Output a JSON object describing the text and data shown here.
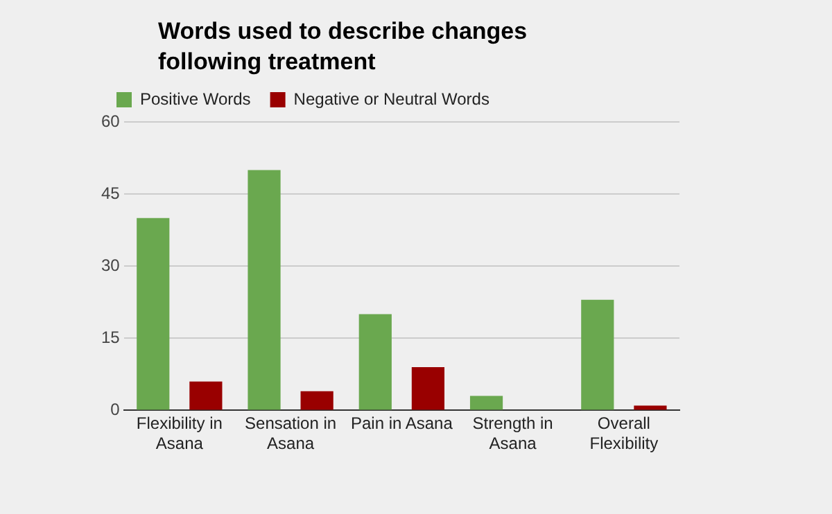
{
  "chart_data": {
    "type": "bar",
    "title": "Words used to describe changes following treatment",
    "categories": [
      "Flexibility in Asana",
      "Sensation in Asana",
      "Pain in Asana",
      "Strength in Asana",
      "Overall Flexibility"
    ],
    "series": [
      {
        "name": "Positive Words",
        "color": "#6aa84f",
        "values": [
          40,
          50,
          20,
          3,
          23
        ]
      },
      {
        "name": "Negative or Neutral Words",
        "color": "#990000",
        "values": [
          6,
          4,
          9,
          0,
          1
        ]
      }
    ],
    "ylim": [
      0,
      60
    ],
    "yticks": [
      0,
      15,
      30,
      45,
      60
    ],
    "grid": "y",
    "legend": "top left"
  }
}
